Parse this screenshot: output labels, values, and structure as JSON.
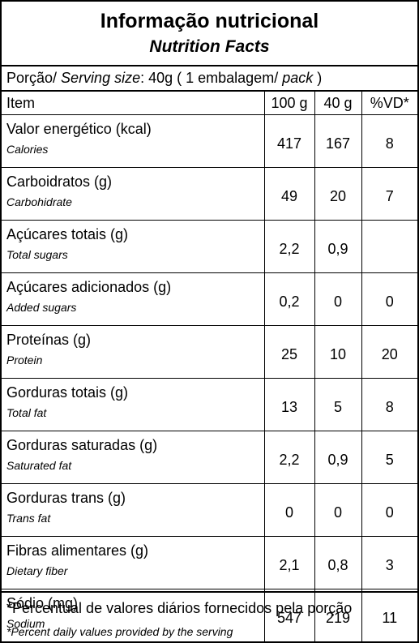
{
  "title": {
    "pt": "Informação nutricional",
    "en": "Nutrition Facts"
  },
  "serving": {
    "pt_label": "Porção/ ",
    "en_label": "Serving size",
    "amount": ": 40g ( 1 embalagem/ ",
    "pack_word": "pack",
    "close": " )"
  },
  "table": {
    "headers": [
      "Item",
      "100 g",
      "40 g",
      "%VD*"
    ],
    "rows": [
      {
        "pt": "Valor energético (kcal)",
        "en": "Calories",
        "v100": "417",
        "v40": "167",
        "vd": "8"
      },
      {
        "pt": "Carboidratos (g)",
        "en": "Carbohidrate",
        "v100": "49",
        "v40": "20",
        "vd": "7"
      },
      {
        "pt": "Açúcares totais (g)",
        "en": "Total sugars",
        "v100": "2,2",
        "v40": "0,9",
        "vd": ""
      },
      {
        "pt": "Açúcares adicionados (g)",
        "en": "Added sugars",
        "v100": "0,2",
        "v40": "0",
        "vd": "0"
      },
      {
        "pt": "Proteínas (g)",
        "en": "Protein",
        "v100": "25",
        "v40": "10",
        "vd": "20"
      },
      {
        "pt": "Gorduras totais (g)",
        "en": "Total fat",
        "v100": "13",
        "v40": "5",
        "vd": "8"
      },
      {
        "pt": "Gorduras saturadas (g)",
        "en": "Saturated fat",
        "v100": "2,2",
        "v40": "0,9",
        "vd": "5"
      },
      {
        "pt": "Gorduras trans (g)",
        "en": "Trans fat",
        "v100": "0",
        "v40": "0",
        "vd": "0"
      },
      {
        "pt": "Fibras alimentares (g)",
        "en": "Dietary fiber",
        "v100": "2,1",
        "v40": "0,8",
        "vd": "3"
      },
      {
        "pt": "Sódio (mg)",
        "en": "Sodium",
        "v100": "547",
        "v40": "219",
        "vd": "11"
      }
    ]
  },
  "footer": {
    "pt": "*Percentual de valores diários fornecidos pela porção",
    "en": "*Percent daily values provided by the serving"
  }
}
